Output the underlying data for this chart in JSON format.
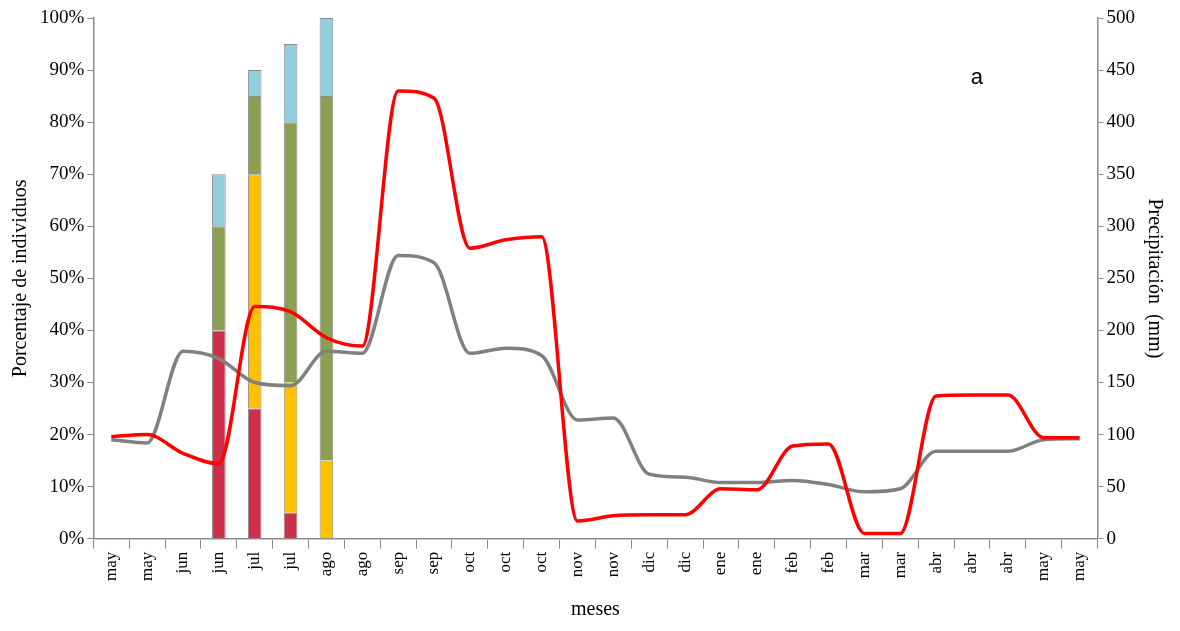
{
  "chart_data": {
    "type": "bar",
    "xlabel": "meses",
    "ylabel": "Porcentaje de individuos",
    "y2label": "Precipitación  (mm)",
    "categories": [
      "may",
      "may",
      "jun",
      "jun",
      "jul",
      "jul",
      "ago",
      "ago",
      "sep",
      "sep",
      "oct",
      "oct",
      "oct",
      "nov",
      "nov",
      "dic",
      "dic",
      "ene",
      "ene",
      "feb",
      "feb",
      "mar",
      "mar",
      "abr",
      "abr",
      "abr",
      "may",
      "may"
    ],
    "stacked": true,
    "legend": false,
    "grid": false,
    "marker": "none",
    "line_style": "solid",
    "ylim": [
      0,
      100
    ],
    "yticks": [
      {
        "value": 0,
        "label": "0%"
      },
      {
        "value": 10,
        "label": "10%"
      },
      {
        "value": 20,
        "label": "20%"
      },
      {
        "value": 30,
        "label": "30%"
      },
      {
        "value": 40,
        "label": "40%"
      },
      {
        "value": 50,
        "label": "50%"
      },
      {
        "value": 60,
        "label": "60%"
      },
      {
        "value": 70,
        "label": "70%"
      },
      {
        "value": 80,
        "label": "80%"
      },
      {
        "value": 90,
        "label": "90%"
      },
      {
        "value": 100,
        "label": "100%"
      }
    ],
    "y2lim": [
      0,
      500
    ],
    "y2ticks": [
      0,
      50,
      100,
      150,
      200,
      250,
      300,
      350,
      400,
      450,
      500
    ],
    "series": [
      {
        "color": "#d02f4a",
        "values": [
          null,
          null,
          null,
          40,
          25,
          5,
          null,
          null,
          null,
          null,
          null,
          null,
          null,
          null,
          null,
          null,
          null,
          null,
          null,
          null,
          null,
          null,
          null,
          null,
          null,
          null,
          null,
          null
        ]
      },
      {
        "color": "#ffc000",
        "values": [
          null,
          null,
          null,
          null,
          45,
          25,
          15,
          null,
          null,
          null,
          null,
          null,
          null,
          null,
          null,
          null,
          null,
          null,
          null,
          null,
          null,
          null,
          null,
          null,
          null,
          null,
          null,
          null
        ]
      },
      {
        "color": "#8b9f53",
        "values": [
          null,
          null,
          null,
          20,
          15,
          50,
          70,
          null,
          null,
          null,
          null,
          null,
          null,
          null,
          null,
          null,
          null,
          null,
          null,
          null,
          null,
          null,
          null,
          null,
          null,
          null,
          null,
          null
        ]
      },
      {
        "color": "#92cddc",
        "values": [
          null,
          null,
          null,
          10,
          5,
          15,
          15,
          null,
          null,
          null,
          null,
          null,
          null,
          null,
          null,
          null,
          null,
          null,
          null,
          null,
          null,
          null,
          null,
          null,
          null,
          null,
          null,
          null
        ]
      },
      {
        "type": "line",
        "axis": "y2",
        "color": "#ff0000",
        "values": [
          98,
          100,
          82,
          72,
          223,
          218,
          193,
          185,
          430,
          423,
          279,
          287,
          290,
          17,
          22,
          23,
          23,
          48,
          47,
          89,
          91,
          5,
          5,
          137,
          138,
          138,
          97,
          97
        ]
      },
      {
        "type": "line",
        "axis": "y2",
        "color": "#808080",
        "values": [
          95,
          92,
          180,
          173,
          150,
          147,
          180,
          178,
          272,
          265,
          178,
          183,
          176,
          114,
          116,
          62,
          59,
          54,
          54,
          56,
          52,
          45,
          48,
          84,
          84,
          84,
          95,
          96
        ]
      }
    ],
    "annotations": [
      "a"
    ]
  }
}
